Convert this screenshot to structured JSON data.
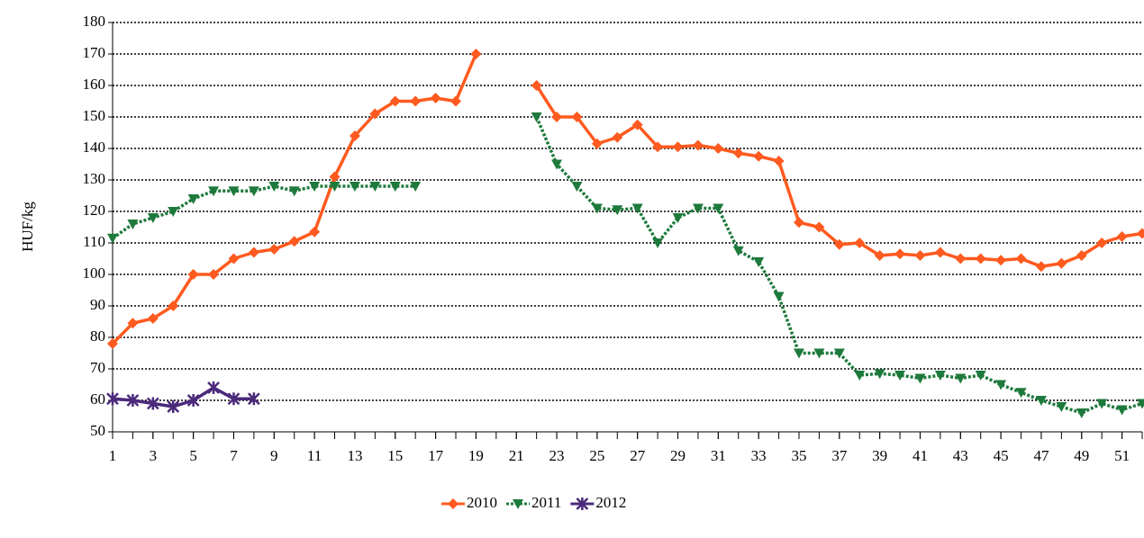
{
  "chart_data": {
    "type": "line",
    "ylabel": "HUF/kg",
    "x": [
      1,
      2,
      3,
      4,
      5,
      6,
      7,
      8,
      9,
      10,
      11,
      12,
      13,
      14,
      15,
      16,
      17,
      18,
      19,
      20,
      21,
      22,
      23,
      24,
      25,
      26,
      27,
      28,
      29,
      30,
      31,
      32,
      33,
      34,
      35,
      36,
      37,
      38,
      39,
      40,
      41,
      42,
      43,
      44,
      45,
      46,
      47,
      48,
      49,
      50,
      51,
      52
    ],
    "xlim": [
      1,
      52
    ],
    "xticks": [
      1,
      3,
      5,
      7,
      9,
      11,
      13,
      15,
      17,
      19,
      21,
      23,
      25,
      27,
      29,
      31,
      33,
      35,
      37,
      39,
      41,
      43,
      45,
      47,
      49,
      51
    ],
    "ylim": [
      50,
      180
    ],
    "yticks": [
      50,
      60,
      70,
      80,
      90,
      100,
      110,
      120,
      130,
      140,
      150,
      160,
      170,
      180
    ],
    "grid": true,
    "legend": "bottom",
    "series": [
      {
        "name": "2010",
        "color": "#ff5a1f",
        "marker": "diamond",
        "dash": "solid",
        "values": [
          78,
          84.5,
          86,
          90,
          100,
          100,
          105,
          107,
          108,
          110.5,
          113.5,
          131,
          144,
          151,
          155,
          155,
          156,
          155,
          170,
          null,
          null,
          160,
          150,
          150,
          141.5,
          143.5,
          147.5,
          140.5,
          140.5,
          141,
          140,
          138.5,
          137.5,
          136,
          116.5,
          115,
          109.5,
          110,
          106,
          106.5,
          106,
          107,
          105,
          105,
          104.5,
          105,
          102.5,
          103.5,
          106,
          110,
          112,
          113
        ]
      },
      {
        "name": "2011",
        "color": "#1e7a3c",
        "marker": "triangle-down",
        "dash": "dotted",
        "values": [
          111.5,
          116,
          118,
          120,
          124,
          126.5,
          126.5,
          126.5,
          128,
          126.5,
          128,
          128,
          128,
          128,
          128,
          128,
          null,
          null,
          null,
          null,
          null,
          150,
          135,
          128,
          121,
          120.5,
          121,
          110,
          118,
          121,
          121,
          107.5,
          104,
          93,
          75,
          75,
          75,
          68,
          68.5,
          68,
          67,
          68,
          67,
          68,
          65,
          62.5,
          60,
          58,
          56,
          59,
          57,
          59
        ]
      },
      {
        "name": "2012",
        "color": "#4b2a7b",
        "marker": "star",
        "dash": "solid",
        "values": [
          60.5,
          60,
          59,
          58,
          60,
          64,
          60.5,
          60.5,
          null,
          null,
          null,
          null,
          null,
          null,
          null,
          null,
          null,
          null,
          null,
          null,
          null,
          null,
          null,
          null,
          null,
          null,
          null,
          null,
          null,
          null,
          null,
          null,
          null,
          null,
          null,
          null,
          null,
          null,
          null,
          null,
          null,
          null,
          null,
          null,
          null,
          null,
          null,
          null,
          null,
          null,
          null,
          null
        ]
      }
    ]
  }
}
